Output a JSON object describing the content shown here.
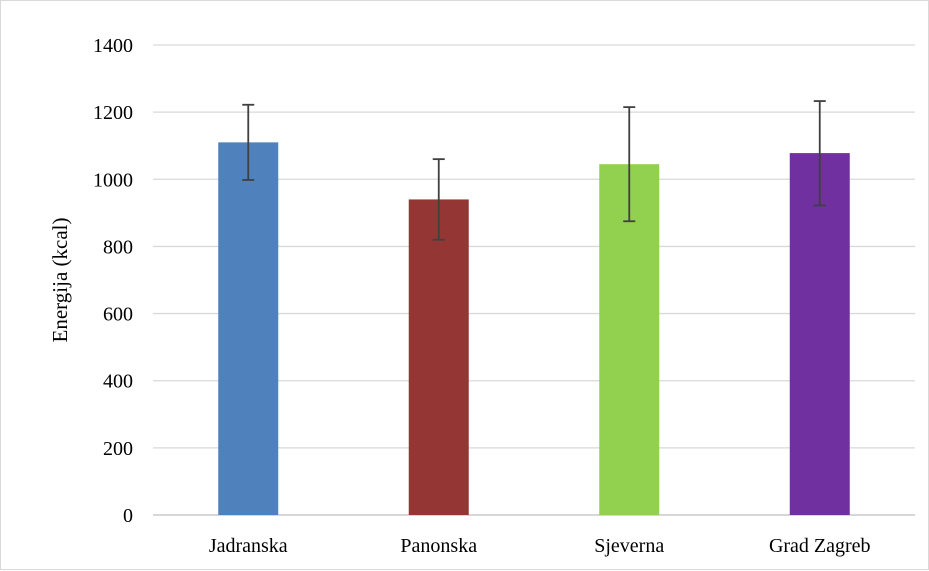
{
  "chart_data": {
    "type": "bar",
    "title": "",
    "xlabel": "",
    "ylabel": "Energija (kcal)",
    "ylim": [
      0,
      1400
    ],
    "yticks": [
      0,
      200,
      400,
      600,
      800,
      1000,
      1200,
      1400
    ],
    "grid": true,
    "categories": [
      "Jadranska",
      "Panonska",
      "Sjeverna",
      "Grad Zagreb"
    ],
    "values": [
      1110,
      940,
      1045,
      1078
    ],
    "error_bars": [
      {
        "low": 998,
        "high": 1222
      },
      {
        "low": 820,
        "high": 1060
      },
      {
        "low": 875,
        "high": 1215
      },
      {
        "low": 922,
        "high": 1233
      }
    ],
    "colors": [
      "#4f81bd",
      "#943634",
      "#92d050",
      "#7030a0"
    ],
    "error_bar_color": "#404040",
    "gridline_color": "#d9d9d9"
  }
}
